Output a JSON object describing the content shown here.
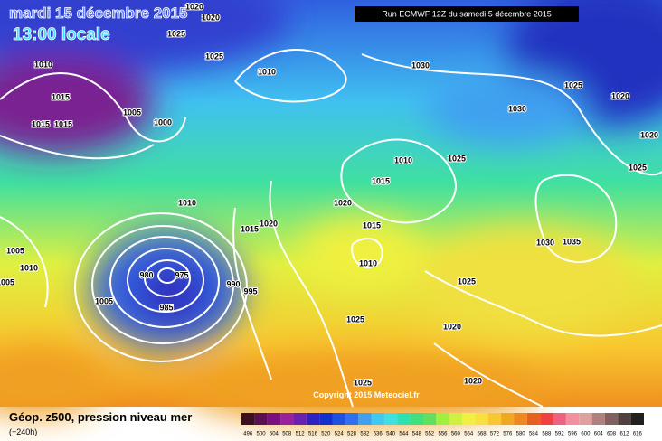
{
  "header": {
    "date": "mardi 15 décembre 2015",
    "time": "13:00 locale",
    "run": "Run ECMWF 12Z du samedi 5 décembre 2015"
  },
  "copyright": "Copyright 2015 Meteociel.fr",
  "footer": {
    "title": "Géop. z500, pression niveau mer",
    "lead": "(+240h)"
  },
  "legend": [
    {
      "value": 496,
      "color": "#3a1020"
    },
    {
      "value": 500,
      "color": "#5a1050"
    },
    {
      "value": 504,
      "color": "#7a1080"
    },
    {
      "value": 508,
      "color": "#9a20a0"
    },
    {
      "value": 512,
      "color": "#6a20b0"
    },
    {
      "value": 516,
      "color": "#3020c0"
    },
    {
      "value": 520,
      "color": "#1030d0"
    },
    {
      "value": 524,
      "color": "#2050e0"
    },
    {
      "value": 528,
      "color": "#3070f0"
    },
    {
      "value": 532,
      "color": "#40a0f0"
    },
    {
      "value": 536,
      "color": "#40c8f0"
    },
    {
      "value": 540,
      "color": "#40e0e0"
    },
    {
      "value": 544,
      "color": "#30e0b0"
    },
    {
      "value": 548,
      "color": "#40e080"
    },
    {
      "value": 552,
      "color": "#60e060"
    },
    {
      "value": 556,
      "color": "#a0f040"
    },
    {
      "value": 560,
      "color": "#d0f040"
    },
    {
      "value": 564,
      "color": "#f0f040"
    },
    {
      "value": 568,
      "color": "#f8e040"
    },
    {
      "value": 572,
      "color": "#f8c830"
    },
    {
      "value": 576,
      "color": "#f0a820"
    },
    {
      "value": 580,
      "color": "#f08820"
    },
    {
      "value": 584,
      "color": "#e86020"
    },
    {
      "value": 588,
      "color": "#f04040"
    },
    {
      "value": 592,
      "color": "#f06080"
    },
    {
      "value": 596,
      "color": "#f090a0"
    },
    {
      "value": 600,
      "color": "#e0a0a0"
    },
    {
      "value": 604,
      "color": "#b08080"
    },
    {
      "value": 608,
      "color": "#806060"
    },
    {
      "value": 612,
      "color": "#504040"
    },
    {
      "value": 616,
      "color": "#202020"
    }
  ],
  "isobar_labels": [
    1020,
    1020,
    1025,
    1025,
    1010,
    1010,
    1030,
    1025,
    1020,
    1015,
    1005,
    1000,
    1015,
    1015,
    1030,
    1020,
    1025,
    1010,
    1025,
    1015,
    1010,
    1020,
    1020,
    1015,
    1015,
    1030,
    1035,
    1010,
    1005,
    1010,
    1005,
    980,
    975,
    990,
    995,
    1005,
    985,
    1025,
    1025,
    1020,
    1025,
    1020
  ]
}
